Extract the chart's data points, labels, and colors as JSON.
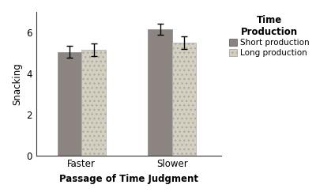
{
  "categories": [
    "Faster",
    "Slower"
  ],
  "short_production_values": [
    5.05,
    6.15
  ],
  "long_production_values": [
    5.15,
    5.5
  ],
  "short_production_errors": [
    0.3,
    0.28
  ],
  "long_production_errors": [
    0.32,
    0.3
  ],
  "short_color": "#8B8480",
  "long_color": "#D5CFC0",
  "ylabel": "Snacking",
  "xlabel": "Passage of Time Judgment",
  "legend_title": "Time\nProduction",
  "legend_labels": [
    "Short production",
    "Long production"
  ],
  "ylim": [
    0,
    7
  ],
  "yticks": [
    0,
    2,
    4,
    6
  ],
  "bar_width": 0.32,
  "group_positions": [
    1.0,
    2.2
  ],
  "background_color": "#ffffff",
  "axis_fontsize": 8.5,
  "tick_fontsize": 8.5,
  "legend_fontsize": 7.5,
  "legend_title_fontsize": 8.5
}
